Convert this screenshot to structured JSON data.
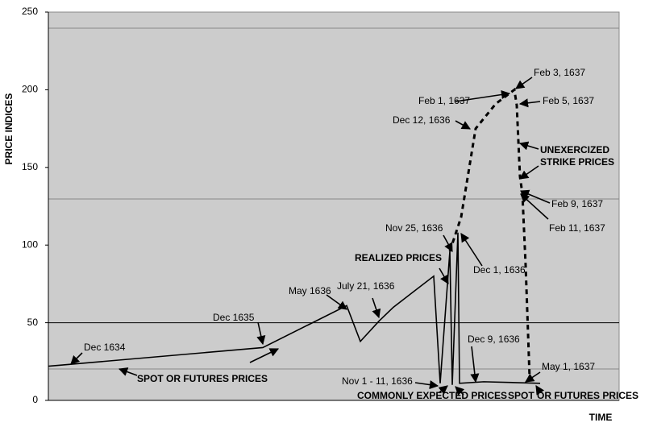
{
  "chart_data": {
    "type": "line",
    "y_label": "PRICE INDICES",
    "x_label": "TIME",
    "ylim": [
      0,
      250
    ],
    "yticks": [
      0,
      50,
      100,
      150,
      200,
      250
    ],
    "series": [
      {
        "style": "solid",
        "color": "#000000",
        "values": [
          22,
          34,
          61,
          38,
          51,
          60,
          80,
          11,
          96,
          10,
          108,
          11,
          12,
          11
        ]
      },
      {
        "style": "dashed",
        "color": "#000000",
        "values": [
          96,
          118,
          175,
          191,
          200,
          190,
          144,
          133,
          87,
          14
        ]
      }
    ],
    "annotations": [
      "Dec 1634",
      "SPOT OR FUTURES PRICES",
      "Dec 1635",
      "May 1636",
      "July 21, 1636",
      "REALIZED PRICES",
      "Nov 25, 1636",
      "Dec 1, 1636",
      "Dec 12, 1636",
      "Feb 1, 1637",
      "Feb 3, 1637",
      "Feb 5, 1637",
      "UNEXERCIZED",
      "STRIKE PRICES",
      "Feb 9, 1637",
      "Feb 11, 1637",
      "Dec 9, 1636",
      "May 1, 1637",
      "Nov 1 - 11, 1636",
      "COMMONLY EXPECTED PRICES",
      "SPOT OR FUTURES PRICES"
    ]
  }
}
